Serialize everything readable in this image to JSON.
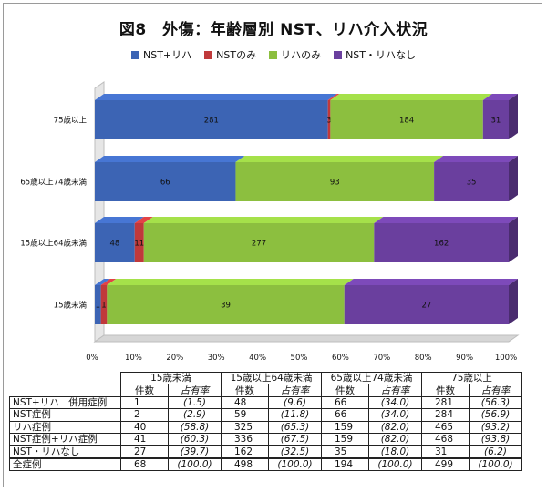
{
  "title": "図8　外傷：年齢層別 NST、リハ介入状況",
  "colors": {
    "nst_riha": "#3c64b4",
    "nst_only": "#c0393b",
    "riha_only": "#8cbf3f",
    "none": "#6a3f9e"
  },
  "chart_data": {
    "type": "bar",
    "orientation": "horizontal",
    "stacked": "percent",
    "title": "図8　外傷：年齢層別 NST、リハ介入状況",
    "categories": [
      "75歳以上",
      "65歳以上74歳未満",
      "15歳以上64歳未満",
      "15歳未満"
    ],
    "series": [
      {
        "name": "NST+リハ",
        "color": "#3c64b4",
        "values": [
          281,
          66,
          48,
          1
        ],
        "labels": [
          "281",
          "66",
          "48",
          "1"
        ]
      },
      {
        "name": "NSTのみ",
        "color": "#c0393b",
        "values": [
          3,
          0,
          11,
          1
        ],
        "labels": [
          "3",
          "",
          "11",
          "1"
        ]
      },
      {
        "name": "リハのみ",
        "color": "#8cbf3f",
        "values": [
          184,
          93,
          277,
          39
        ],
        "labels": [
          "184",
          "93",
          "277",
          "39"
        ]
      },
      {
        "name": "NST・リハなし",
        "color": "#6a3f9e",
        "values": [
          31,
          35,
          162,
          27
        ],
        "labels": [
          "31",
          "35",
          "162",
          "27"
        ]
      }
    ],
    "xlim": [
      0,
      100
    ],
    "xticks": [
      "0%",
      "10%",
      "20%",
      "30%",
      "40%",
      "50%",
      "60%",
      "70%",
      "80%",
      "90%",
      "100%"
    ],
    "legend": "top",
    "grid": false
  },
  "table": {
    "groups": [
      "15歳未満",
      "15歳以上64歳未満",
      "65歳以上74歳未満",
      "75歳以上"
    ],
    "sub_count": "件数",
    "sub_rate": "占有率",
    "rows": [
      {
        "label": "NST+リハ　併用症例",
        "cells": [
          [
            "1",
            "(1.5)"
          ],
          [
            "48",
            "(9.6)"
          ],
          [
            "66",
            "(34.0)"
          ],
          [
            "281",
            "(56.3)"
          ]
        ]
      },
      {
        "label": "NST症例",
        "cells": [
          [
            "2",
            "(2.9)"
          ],
          [
            "59",
            "(11.8)"
          ],
          [
            "66",
            "(34.0)"
          ],
          [
            "284",
            "(56.9)"
          ]
        ]
      },
      {
        "label": "リハ症例",
        "cells": [
          [
            "40",
            "(58.8)"
          ],
          [
            "325",
            "(65.3)"
          ],
          [
            "159",
            "(82.0)"
          ],
          [
            "465",
            "(93.2)"
          ]
        ]
      },
      {
        "label": "NST症例+リハ症例",
        "cells": [
          [
            "41",
            "(60.3)"
          ],
          [
            "336",
            "(67.5)"
          ],
          [
            "159",
            "(82.0)"
          ],
          [
            "468",
            "(93.8)"
          ]
        ]
      },
      {
        "label": "NST・リハなし",
        "cells": [
          [
            "27",
            "(39.7)"
          ],
          [
            "162",
            "(32.5)"
          ],
          [
            "35",
            "(18.0)"
          ],
          [
            "31",
            "(6.2)"
          ]
        ]
      }
    ],
    "total": {
      "label": "全症例",
      "cells": [
        [
          "68",
          "(100.0)"
        ],
        [
          "498",
          "(100.0)"
        ],
        [
          "194",
          "(100.0)"
        ],
        [
          "499",
          "(100.0)"
        ]
      ]
    }
  }
}
